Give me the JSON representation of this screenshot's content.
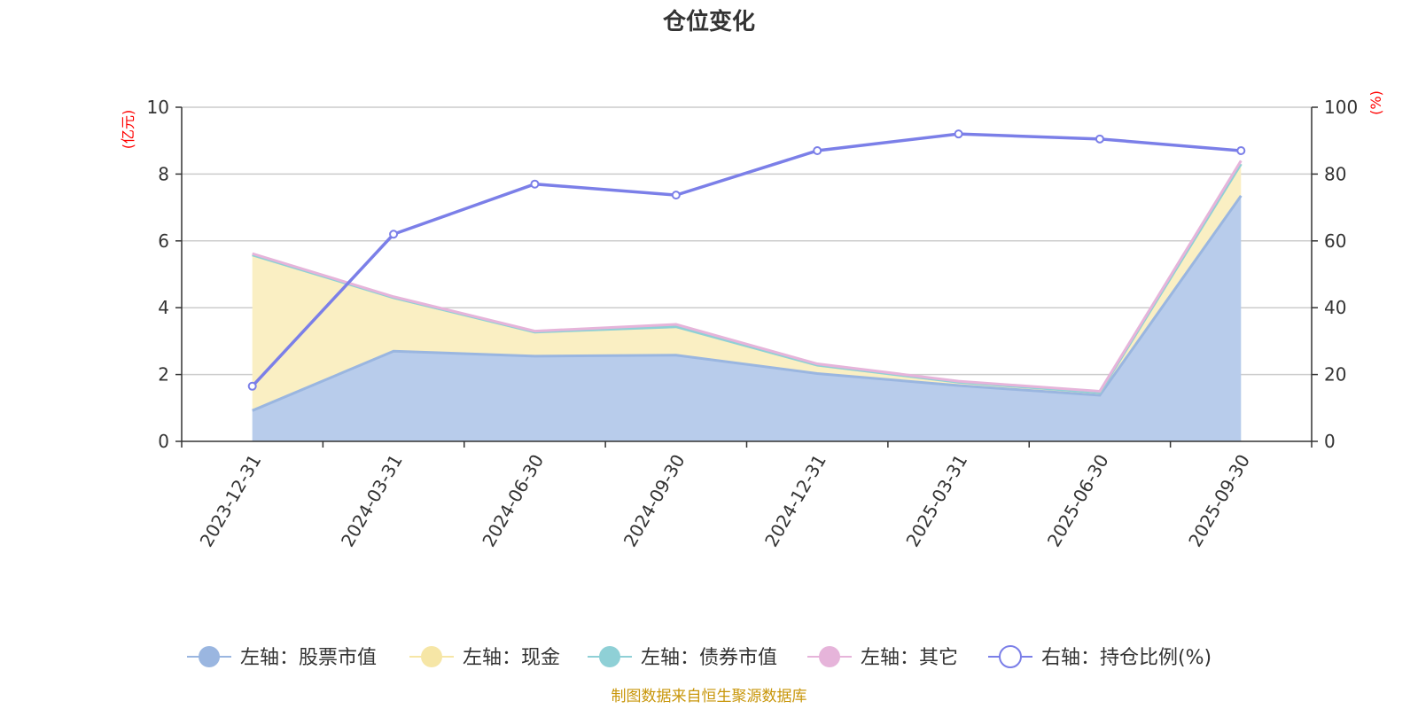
{
  "chart_data": {
    "type": "area",
    "title": "仓位变化",
    "categories": [
      "2023-12-31",
      "2024-03-31",
      "2024-06-30",
      "2024-09-30",
      "2024-12-31",
      "2025-03-31",
      "2025-06-30",
      "2025-09-30"
    ],
    "left_axis": {
      "unit": "(亿元)",
      "ylim": [
        0,
        10
      ],
      "ticks": [
        0,
        2,
        4,
        6,
        8,
        10
      ]
    },
    "right_axis": {
      "unit": "(%)",
      "ylim": [
        0,
        100
      ],
      "ticks": [
        0,
        20,
        40,
        60,
        80,
        100
      ]
    },
    "series": [
      {
        "name": "左轴：股票市值",
        "axis": "left",
        "kind": "stacked-area",
        "color": "#9ab6e0",
        "fill": "#b8cceb",
        "values": [
          0.92,
          2.7,
          2.55,
          2.58,
          2.03,
          1.67,
          1.38,
          7.35
        ]
      },
      {
        "name": "左轴：现金",
        "axis": "left",
        "kind": "stacked-area",
        "color": "#f6e6a6",
        "fill": "#faefc3",
        "values": [
          4.66,
          1.6,
          0.72,
          0.85,
          0.25,
          0.1,
          0.08,
          0.95
        ]
      },
      {
        "name": "左轴：债券市值",
        "axis": "left",
        "kind": "stacked-area",
        "color": "#8fd0d6",
        "fill": "#c5e8eb",
        "values": [
          0,
          0,
          0,
          0,
          0,
          0,
          0,
          0
        ]
      },
      {
        "name": "左轴：其它",
        "axis": "left",
        "kind": "stacked-area",
        "color": "#e6b4da",
        "fill": "#f2d5ec",
        "values": [
          0.04,
          0.03,
          0.03,
          0.07,
          0.04,
          0.03,
          0.04,
          0.1
        ]
      },
      {
        "name": "右轴：持仓比例(%)",
        "axis": "right",
        "kind": "line",
        "color": "#7b7fe8",
        "values": [
          16.5,
          62.0,
          77.0,
          73.7,
          87.0,
          92.0,
          90.5,
          87.0
        ]
      }
    ],
    "grid": true,
    "legend_position": "bottom"
  },
  "source_note": "制图数据来自恒生聚源数据库"
}
